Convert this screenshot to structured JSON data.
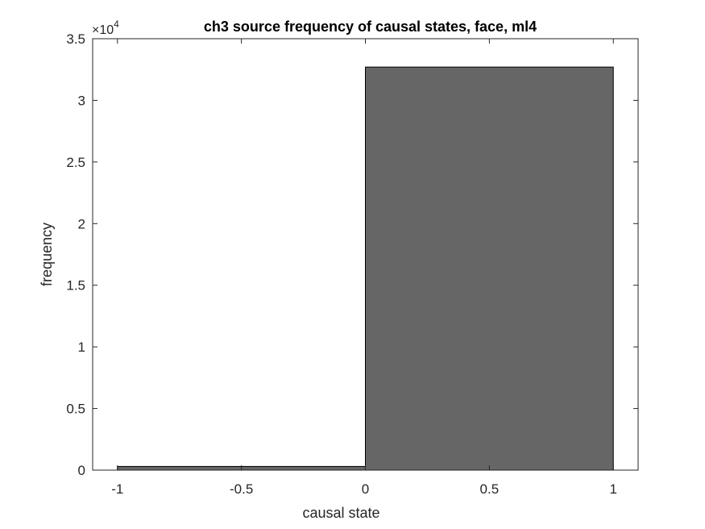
{
  "chart_data": {
    "type": "bar",
    "title": "ch3 source frequency of causal states, face, ml4",
    "xlabel": "causal state",
    "ylabel": "frequency",
    "xlim": [
      -1.1,
      1.1
    ],
    "ylim": [
      0,
      35000
    ],
    "y_exponent_label": "×10",
    "y_exponent": "4",
    "x_ticks": [
      -1,
      -0.5,
      0,
      0.5,
      1
    ],
    "x_tick_labels": [
      "-1",
      "-0.5",
      "0",
      "0.5",
      "1"
    ],
    "y_ticks": [
      0,
      5000,
      10000,
      15000,
      20000,
      25000,
      30000,
      35000
    ],
    "y_tick_labels": [
      "0",
      "0.5",
      "1",
      "1.5",
      "2",
      "2.5",
      "3",
      "3.5"
    ],
    "bins": [
      {
        "x_start": -1,
        "x_end": 0,
        "value": 300
      },
      {
        "x_start": 0,
        "x_end": 1,
        "value": 32700
      }
    ],
    "bar_color": "#666666",
    "bar_edge_color": "#000000",
    "grid": false,
    "box": true
  }
}
